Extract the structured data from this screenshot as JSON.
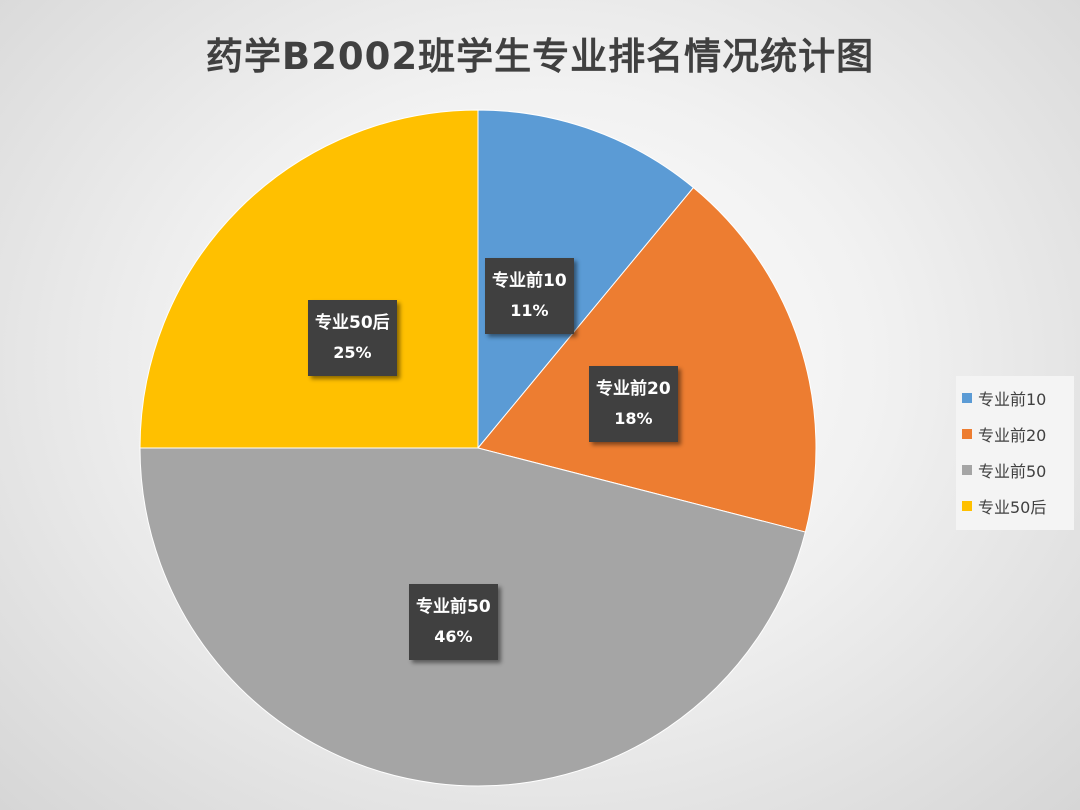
{
  "chart_data": {
    "type": "pie",
    "title": "药学B2002班学生专业排名情况统计图",
    "categories": [
      "专业前10",
      "专业前20",
      "专业前50",
      "专业50后"
    ],
    "values": [
      11,
      18,
      46,
      25
    ],
    "value_labels": [
      "11%",
      "18%",
      "46%",
      "25%"
    ],
    "colors": [
      "#5B9BD5",
      "#ED7D31",
      "#A5A5A5",
      "#FFC000"
    ],
    "legend_position": "right",
    "start_angle_deg": 0,
    "direction": "clockwise"
  }
}
